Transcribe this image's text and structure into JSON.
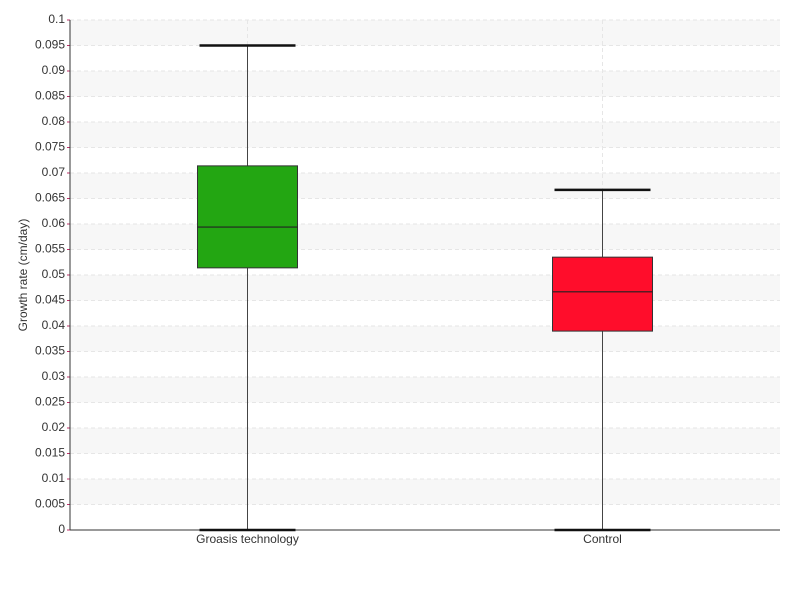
{
  "chart_data": {
    "type": "box",
    "y_label": "Growth rate (cm/day)",
    "categories": [
      "Groasis technology",
      "Control"
    ],
    "boxes": [
      {
        "min": 0,
        "q1": 0.0514,
        "median": 0.0594,
        "q3": 0.0714,
        "max": 0.095,
        "color": "#23a612"
      },
      {
        "min": 0,
        "q1": 0.039,
        "median": 0.0467,
        "q3": 0.0535,
        "max": 0.0667,
        "color": "#ff0d2b"
      }
    ],
    "ylim": [
      0,
      0.1
    ],
    "yticks": [
      0,
      0.005,
      0.01,
      0.015,
      0.02,
      0.025,
      0.03,
      0.035,
      0.04,
      0.045,
      0.05,
      0.055,
      0.06,
      0.065,
      0.07,
      0.075,
      0.08,
      0.085,
      0.09,
      0.095,
      0.1
    ],
    "grid": true
  }
}
